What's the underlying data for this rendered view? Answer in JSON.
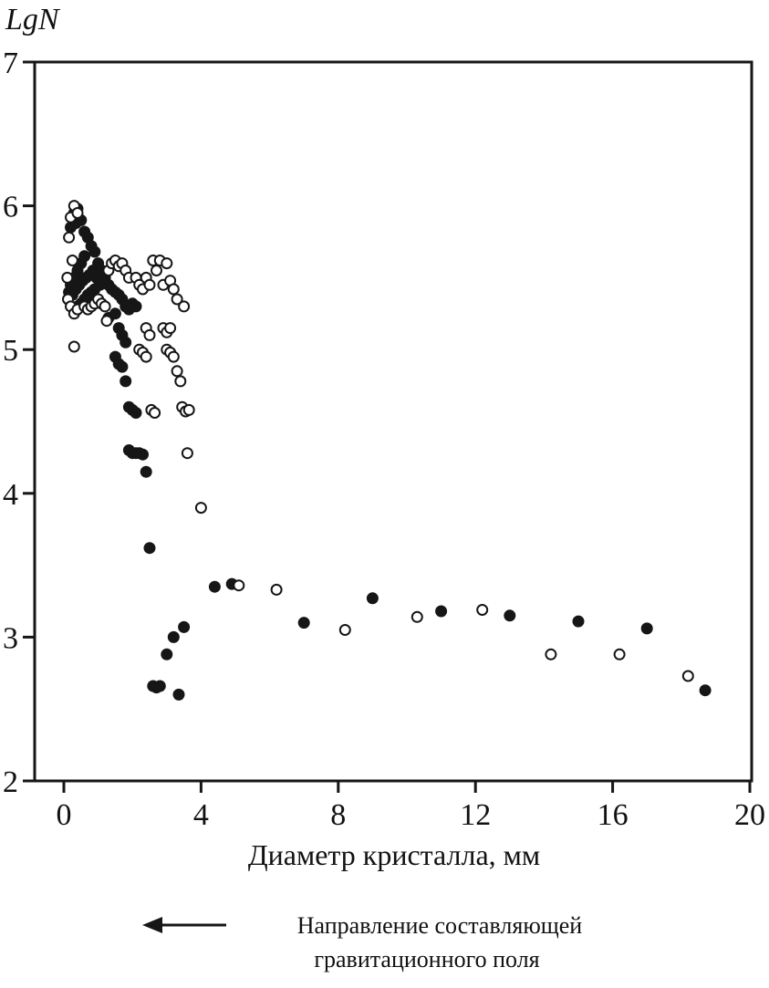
{
  "title": "LgN",
  "axes": {
    "xlabel": "Диаметр кристалла, мм"
  },
  "caption": {
    "arrow": "left-arrow",
    "line1": "Направление составляющей",
    "line2": "гравитационного поля"
  },
  "colors": {
    "ink": "#161616",
    "open_fill": "#ffffff"
  },
  "chart_data": {
    "type": "scatter",
    "title": "LgN",
    "xlabel": "Диаметр кристалла, мм",
    "ylabel": "LgN",
    "xlim": [
      0,
      20
    ],
    "ylim": [
      2,
      7
    ],
    "xticks": [
      0,
      4,
      8,
      12,
      16,
      20
    ],
    "yticks": [
      2,
      3,
      4,
      5,
      6,
      7
    ],
    "grid": false,
    "legend": "none",
    "series": [
      {
        "name": "filled",
        "marker": "filled-circle",
        "fill": "#161616",
        "edge": "#161616",
        "points": [
          [
            0.2,
            5.85
          ],
          [
            0.3,
            5.95
          ],
          [
            0.4,
            5.98
          ],
          [
            0.5,
            5.9
          ],
          [
            0.35,
            5.88
          ],
          [
            0.6,
            5.82
          ],
          [
            0.7,
            5.78
          ],
          [
            0.8,
            5.72
          ],
          [
            0.9,
            5.68
          ],
          [
            0.6,
            5.65
          ],
          [
            0.5,
            5.6
          ],
          [
            0.4,
            5.55
          ],
          [
            0.3,
            5.5
          ],
          [
            0.2,
            5.45
          ],
          [
            0.15,
            5.4
          ],
          [
            0.25,
            5.38
          ],
          [
            0.35,
            5.42
          ],
          [
            0.45,
            5.45
          ],
          [
            0.55,
            5.48
          ],
          [
            0.65,
            5.5
          ],
          [
            0.75,
            5.52
          ],
          [
            0.85,
            5.55
          ],
          [
            0.95,
            5.5
          ],
          [
            1.05,
            5.45
          ],
          [
            0.9,
            5.42
          ],
          [
            0.8,
            5.4
          ],
          [
            0.7,
            5.38
          ],
          [
            0.6,
            5.35
          ],
          [
            0.5,
            5.32
          ],
          [
            0.4,
            5.3
          ],
          [
            0.3,
            5.28
          ],
          [
            1.0,
            5.6
          ],
          [
            1.1,
            5.55
          ],
          [
            1.2,
            5.5
          ],
          [
            1.3,
            5.45
          ],
          [
            1.4,
            5.42
          ],
          [
            1.5,
            5.4
          ],
          [
            1.6,
            5.38
          ],
          [
            1.7,
            5.35
          ],
          [
            1.8,
            5.3
          ],
          [
            1.9,
            5.28
          ],
          [
            2.0,
            5.32
          ],
          [
            2.1,
            5.3
          ],
          [
            1.5,
            5.25
          ],
          [
            1.3,
            5.22
          ],
          [
            1.6,
            5.15
          ],
          [
            1.7,
            5.1
          ],
          [
            1.8,
            5.05
          ],
          [
            1.5,
            4.95
          ],
          [
            1.6,
            4.9
          ],
          [
            1.7,
            4.88
          ],
          [
            1.8,
            4.78
          ],
          [
            1.9,
            4.6
          ],
          [
            2.0,
            4.58
          ],
          [
            2.1,
            4.56
          ],
          [
            1.9,
            4.3
          ],
          [
            2.0,
            4.28
          ],
          [
            2.1,
            4.28
          ],
          [
            2.2,
            4.28
          ],
          [
            2.3,
            4.27
          ],
          [
            2.4,
            4.15
          ],
          [
            2.5,
            3.62
          ],
          [
            2.6,
            2.66
          ],
          [
            2.7,
            2.65
          ],
          [
            2.8,
            2.66
          ],
          [
            3.0,
            2.88
          ],
          [
            3.2,
            3.0
          ],
          [
            3.35,
            2.6
          ],
          [
            3.5,
            3.07
          ],
          [
            4.4,
            3.35
          ],
          [
            4.9,
            3.37
          ],
          [
            7.0,
            3.1
          ],
          [
            9.0,
            3.27
          ],
          [
            11.0,
            3.18
          ],
          [
            13.0,
            3.15
          ],
          [
            15.0,
            3.11
          ],
          [
            17.0,
            3.06
          ],
          [
            18.7,
            2.63
          ]
        ]
      },
      {
        "name": "open",
        "marker": "open-circle",
        "fill": "#ffffff",
        "edge": "#161616",
        "points": [
          [
            0.2,
            5.92
          ],
          [
            0.3,
            6.0
          ],
          [
            0.4,
            5.95
          ],
          [
            0.15,
            5.78
          ],
          [
            0.25,
            5.62
          ],
          [
            0.1,
            5.5
          ],
          [
            0.12,
            5.35
          ],
          [
            0.2,
            5.3
          ],
          [
            0.3,
            5.25
          ],
          [
            0.4,
            5.28
          ],
          [
            0.3,
            5.02
          ],
          [
            0.6,
            5.3
          ],
          [
            0.7,
            5.28
          ],
          [
            0.8,
            5.3
          ],
          [
            0.9,
            5.32
          ],
          [
            1.0,
            5.35
          ],
          [
            1.1,
            5.32
          ],
          [
            1.2,
            5.3
          ],
          [
            1.25,
            5.2
          ],
          [
            1.3,
            5.55
          ],
          [
            1.4,
            5.6
          ],
          [
            1.5,
            5.62
          ],
          [
            1.6,
            5.58
          ],
          [
            1.7,
            5.6
          ],
          [
            1.8,
            5.55
          ],
          [
            1.9,
            5.5
          ],
          [
            2.1,
            5.5
          ],
          [
            2.2,
            5.45
          ],
          [
            2.3,
            5.42
          ],
          [
            2.4,
            5.5
          ],
          [
            2.5,
            5.45
          ],
          [
            2.6,
            5.62
          ],
          [
            2.7,
            5.55
          ],
          [
            2.8,
            5.62
          ],
          [
            2.9,
            5.45
          ],
          [
            3.0,
            5.6
          ],
          [
            3.1,
            5.48
          ],
          [
            3.2,
            5.42
          ],
          [
            3.3,
            5.35
          ],
          [
            3.5,
            5.3
          ],
          [
            2.4,
            5.15
          ],
          [
            2.5,
            5.1
          ],
          [
            2.2,
            5.0
          ],
          [
            2.3,
            4.98
          ],
          [
            2.4,
            4.95
          ],
          [
            2.9,
            5.15
          ],
          [
            3.0,
            5.12
          ],
          [
            3.1,
            5.15
          ],
          [
            3.0,
            5.0
          ],
          [
            3.1,
            4.98
          ],
          [
            3.2,
            4.95
          ],
          [
            3.3,
            4.85
          ],
          [
            3.4,
            4.78
          ],
          [
            3.45,
            4.6
          ],
          [
            3.55,
            4.57
          ],
          [
            3.65,
            4.58
          ],
          [
            2.55,
            4.58
          ],
          [
            2.65,
            4.56
          ],
          [
            3.6,
            4.28
          ],
          [
            4.0,
            3.9
          ],
          [
            5.1,
            3.36
          ],
          [
            6.2,
            3.33
          ],
          [
            8.2,
            3.05
          ],
          [
            10.3,
            3.14
          ],
          [
            12.2,
            3.19
          ],
          [
            14.2,
            2.88
          ],
          [
            16.2,
            2.88
          ],
          [
            18.2,
            2.73
          ]
        ]
      }
    ]
  }
}
